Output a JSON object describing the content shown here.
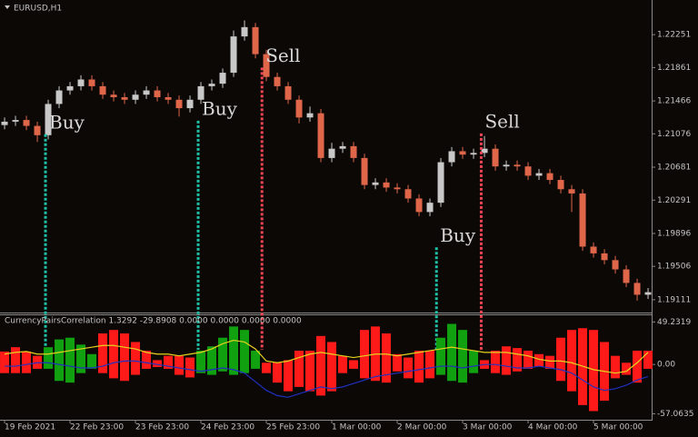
{
  "chart_data": [
    {
      "type": "candlestick",
      "title": "EURUSD,H1",
      "open": [
        1.2118,
        1.2122,
        1.2124,
        1.2117,
        1.2106,
        1.2143,
        1.2159,
        1.2164,
        1.2172,
        1.2164,
        1.2154,
        1.2151,
        1.2148,
        1.2154,
        1.2159,
        1.2151,
        1.2148,
        1.2138,
        1.2148,
        1.2164,
        1.2167,
        1.218,
        1.2223,
        1.2234,
        1.2202,
        1.2175,
        1.2164,
        1.2148,
        1.2127,
        1.2132,
        1.2079,
        1.209,
        1.2093,
        1.2079,
        1.2047,
        1.205,
        1.2044,
        1.2042,
        1.2031,
        1.2015,
        1.2026,
        1.2074,
        1.2087,
        1.2083,
        1.2085,
        1.209,
        1.2069,
        1.2071,
        1.2069,
        1.2058,
        1.2061,
        1.2053,
        1.2042,
        1.2037,
        1.1974,
        1.1966,
        1.1958,
        1.1947,
        1.1931,
        1.1917
      ],
      "high": [
        1.2127,
        1.2129,
        1.2129,
        1.2122,
        1.2148,
        1.2164,
        1.2169,
        1.2177,
        1.2177,
        1.2169,
        1.2159,
        1.2156,
        1.2159,
        1.2164,
        1.2164,
        1.2156,
        1.2153,
        1.2153,
        1.2169,
        1.2172,
        1.2185,
        1.223,
        1.2242,
        1.2239,
        1.2207,
        1.218,
        1.2169,
        1.2153,
        1.214,
        1.2137,
        1.2097,
        1.2098,
        1.2098,
        1.2084,
        1.2055,
        1.2055,
        1.2049,
        1.2047,
        1.2036,
        1.2031,
        1.2079,
        1.2092,
        1.2092,
        1.209,
        1.2105,
        1.2095,
        1.2076,
        1.2076,
        1.2074,
        1.2066,
        1.2066,
        1.2058,
        1.2047,
        1.2042,
        1.1979,
        1.1971,
        1.1963,
        1.1952,
        1.1936,
        1.1925
      ],
      "low": [
        1.2113,
        1.2117,
        1.2112,
        1.2098,
        1.2101,
        1.2138,
        1.2154,
        1.2159,
        1.2159,
        1.2149,
        1.2146,
        1.2143,
        1.2143,
        1.2149,
        1.2146,
        1.2143,
        1.2128,
        1.2133,
        1.2143,
        1.2159,
        1.2162,
        1.2175,
        1.2218,
        1.2197,
        1.217,
        1.2159,
        1.2143,
        1.212,
        1.2122,
        1.2074,
        1.2074,
        1.2085,
        1.2074,
        1.2042,
        1.2042,
        1.2039,
        1.2037,
        1.2026,
        1.201,
        1.201,
        1.2021,
        1.2069,
        1.2078,
        1.2078,
        1.208,
        1.2064,
        1.2064,
        1.2064,
        1.2053,
        1.2053,
        1.2048,
        1.2037,
        1.2015,
        1.1969,
        1.1961,
        1.1953,
        1.1942,
        1.1926,
        1.191,
        1.1912
      ],
      "close": [
        1.2122,
        1.2124,
        1.2117,
        1.2106,
        1.2143,
        1.2159,
        1.2164,
        1.2172,
        1.2164,
        1.2154,
        1.2151,
        1.2148,
        1.2154,
        1.2159,
        1.2151,
        1.2148,
        1.2138,
        1.2148,
        1.2164,
        1.2167,
        1.218,
        1.2223,
        1.2234,
        1.2202,
        1.2175,
        1.2164,
        1.2148,
        1.2127,
        1.2132,
        1.2079,
        1.209,
        1.2093,
        1.2079,
        1.2047,
        1.205,
        1.2044,
        1.2042,
        1.2031,
        1.2015,
        1.2026,
        1.2074,
        1.2087,
        1.2083,
        1.2085,
        1.209,
        1.2069,
        1.2071,
        1.2069,
        1.2058,
        1.2061,
        1.2053,
        1.2042,
        1.2037,
        1.1974,
        1.1966,
        1.1958,
        1.1947,
        1.1931,
        1.1917,
        1.192
      ],
      "up_color": "#c8c8c8",
      "down_color": "#e0664a",
      "xlim": [
        -0.42,
        59.33
      ],
      "ylim": [
        1.1897,
        1.2264
      ],
      "yticks": [
        1.22251,
        1.21861,
        1.21466,
        1.21076,
        1.20681,
        1.20291,
        1.19896,
        1.19506,
        1.19111
      ],
      "annotations": [
        {
          "text": "Buy",
          "x": 3.75,
          "y": 1.212,
          "color": "#1fbfa5"
        },
        {
          "text": "Buy",
          "x": 17.75,
          "y": 1.2136,
          "color": "#1fbfa5"
        },
        {
          "text": "Sell",
          "x": 23.6,
          "y": 1.2199,
          "color": "#f04654"
        },
        {
          "text": "Buy",
          "x": 39.6,
          "y": 1.1986,
          "color": "#1fbfa5"
        },
        {
          "text": "Sell",
          "x": 43.7,
          "y": 1.2121,
          "color": "#f04654"
        }
      ]
    },
    {
      "type": "histogram",
      "title": "CurrencyPairsCorrelation 1.3292 -29.8908 0.0000 0.0000 0.0000 0.0000",
      "top": [
        15,
        20,
        15,
        10,
        20,
        29,
        31,
        23,
        12,
        36,
        40,
        36,
        26,
        16,
        5,
        10,
        10,
        8,
        16,
        21,
        31,
        44,
        40,
        16,
        2,
        2,
        5,
        16,
        16,
        33,
        26,
        10,
        5,
        40,
        44,
        36,
        12,
        8,
        16,
        16,
        31,
        47,
        40,
        16,
        5,
        16,
        21,
        19,
        16,
        12,
        10,
        31,
        40,
        42,
        40,
        26,
        10,
        2,
        16,
        16
      ],
      "bottom": [
        -10,
        -10,
        -10,
        -5,
        -5,
        -19,
        -21,
        -10,
        -5,
        -10,
        -16,
        -19,
        -12,
        -5,
        -3,
        -5,
        -12,
        -15,
        -10,
        -12,
        -8,
        -12,
        -10,
        -5,
        -10,
        -21,
        -31,
        -26,
        -31,
        -36,
        -31,
        -10,
        -5,
        -16,
        -19,
        -21,
        -8,
        -16,
        -21,
        -16,
        -12,
        -19,
        -21,
        -10,
        -5,
        -10,
        -12,
        -8,
        -5,
        -2,
        -5,
        -19,
        -31,
        -47,
        -54,
        -42,
        -16,
        -12,
        -21,
        -5
      ],
      "bar_color": [
        "#ff1a1a",
        "#ff1a1a",
        "#ff1a1a",
        "#ff1a1a",
        "#10a010",
        "#10a010",
        "#10a010",
        "#10a010",
        "#10a010",
        "#ff1a1a",
        "#ff1a1a",
        "#ff1a1a",
        "#ff1a1a",
        "#ff1a1a",
        "#ff1a1a",
        "#ff1a1a",
        "#ff1a1a",
        "#ff1a1a",
        "#10a010",
        "#10a010",
        "#10a010",
        "#10a010",
        "#10a010",
        "#10a010",
        "#ff1a1a",
        "#ff1a1a",
        "#ff1a1a",
        "#ff1a1a",
        "#ff1a1a",
        "#ff1a1a",
        "#ff1a1a",
        "#ff1a1a",
        "#ff1a1a",
        "#ff1a1a",
        "#ff1a1a",
        "#ff1a1a",
        "#ff1a1a",
        "#ff1a1a",
        "#ff1a1a",
        "#ff1a1a",
        "#10a010",
        "#10a010",
        "#10a010",
        "#10a010",
        "#ff1a1a",
        "#ff1a1a",
        "#ff1a1a",
        "#ff1a1a",
        "#ff1a1a",
        "#ff1a1a",
        "#ff1a1a",
        "#ff1a1a",
        "#ff1a1a",
        "#ff1a1a",
        "#ff1a1a",
        "#ff1a1a",
        "#ff1a1a",
        "#ff1a1a",
        "#ff1a1a",
        "#ff1a1a"
      ],
      "series": [
        {
          "color": "#e6d21e",
          "values": [
            12,
            14,
            15,
            12,
            12,
            14,
            16,
            18,
            20,
            22,
            22,
            20,
            18,
            14,
            12,
            12,
            10,
            12,
            14,
            18,
            24,
            28,
            26,
            18,
            4,
            2,
            4,
            8,
            12,
            14,
            12,
            10,
            8,
            10,
            12,
            12,
            10,
            12,
            14,
            16,
            18,
            20,
            18,
            16,
            14,
            14,
            14,
            12,
            10,
            6,
            4,
            4,
            2,
            -2,
            -6,
            -8,
            -10,
            -8,
            2,
            14
          ]
        },
        {
          "color": "#2030c0",
          "values": [
            -2,
            -2,
            0,
            2,
            2,
            0,
            -2,
            -4,
            -4,
            -2,
            2,
            4,
            4,
            2,
            0,
            -2,
            -4,
            -6,
            -8,
            -6,
            -4,
            -6,
            -10,
            -20,
            -30,
            -36,
            -38,
            -34,
            -30,
            -26,
            -28,
            -26,
            -22,
            -18,
            -14,
            -12,
            -10,
            -8,
            -6,
            -4,
            -2,
            -2,
            -4,
            -2,
            0,
            0,
            -2,
            -4,
            -4,
            -2,
            -4,
            -6,
            -10,
            -18,
            -26,
            -30,
            -28,
            -24,
            -18,
            -14
          ]
        }
      ],
      "xlim": [
        -0.42,
        59.33
      ],
      "ylim": [
        -64,
        57
      ],
      "yticks": [
        49.2319,
        {
          "value": 0,
          "label": "0.00"
        },
        -57.0635
      ],
      "xticks": [
        {
          "value": 0,
          "label": "19 Feb 2021"
        },
        {
          "value": 6,
          "label": "22 Feb 23:00"
        },
        {
          "value": 12,
          "label": "23 Feb 23:00"
        },
        {
          "value": 18,
          "label": "24 Feb 23:00"
        },
        {
          "value": 24,
          "label": "25 Feb 23:00"
        },
        {
          "value": 30,
          "label": "1 Mar 00:00"
        },
        {
          "value": 36,
          "label": "2 Mar 00:00"
        },
        {
          "value": 42,
          "label": "3 Mar 00:00"
        },
        {
          "value": 48,
          "label": "4 Mar 00:00"
        },
        {
          "value": 54,
          "label": "5 Mar 00:00"
        }
      ]
    }
  ]
}
